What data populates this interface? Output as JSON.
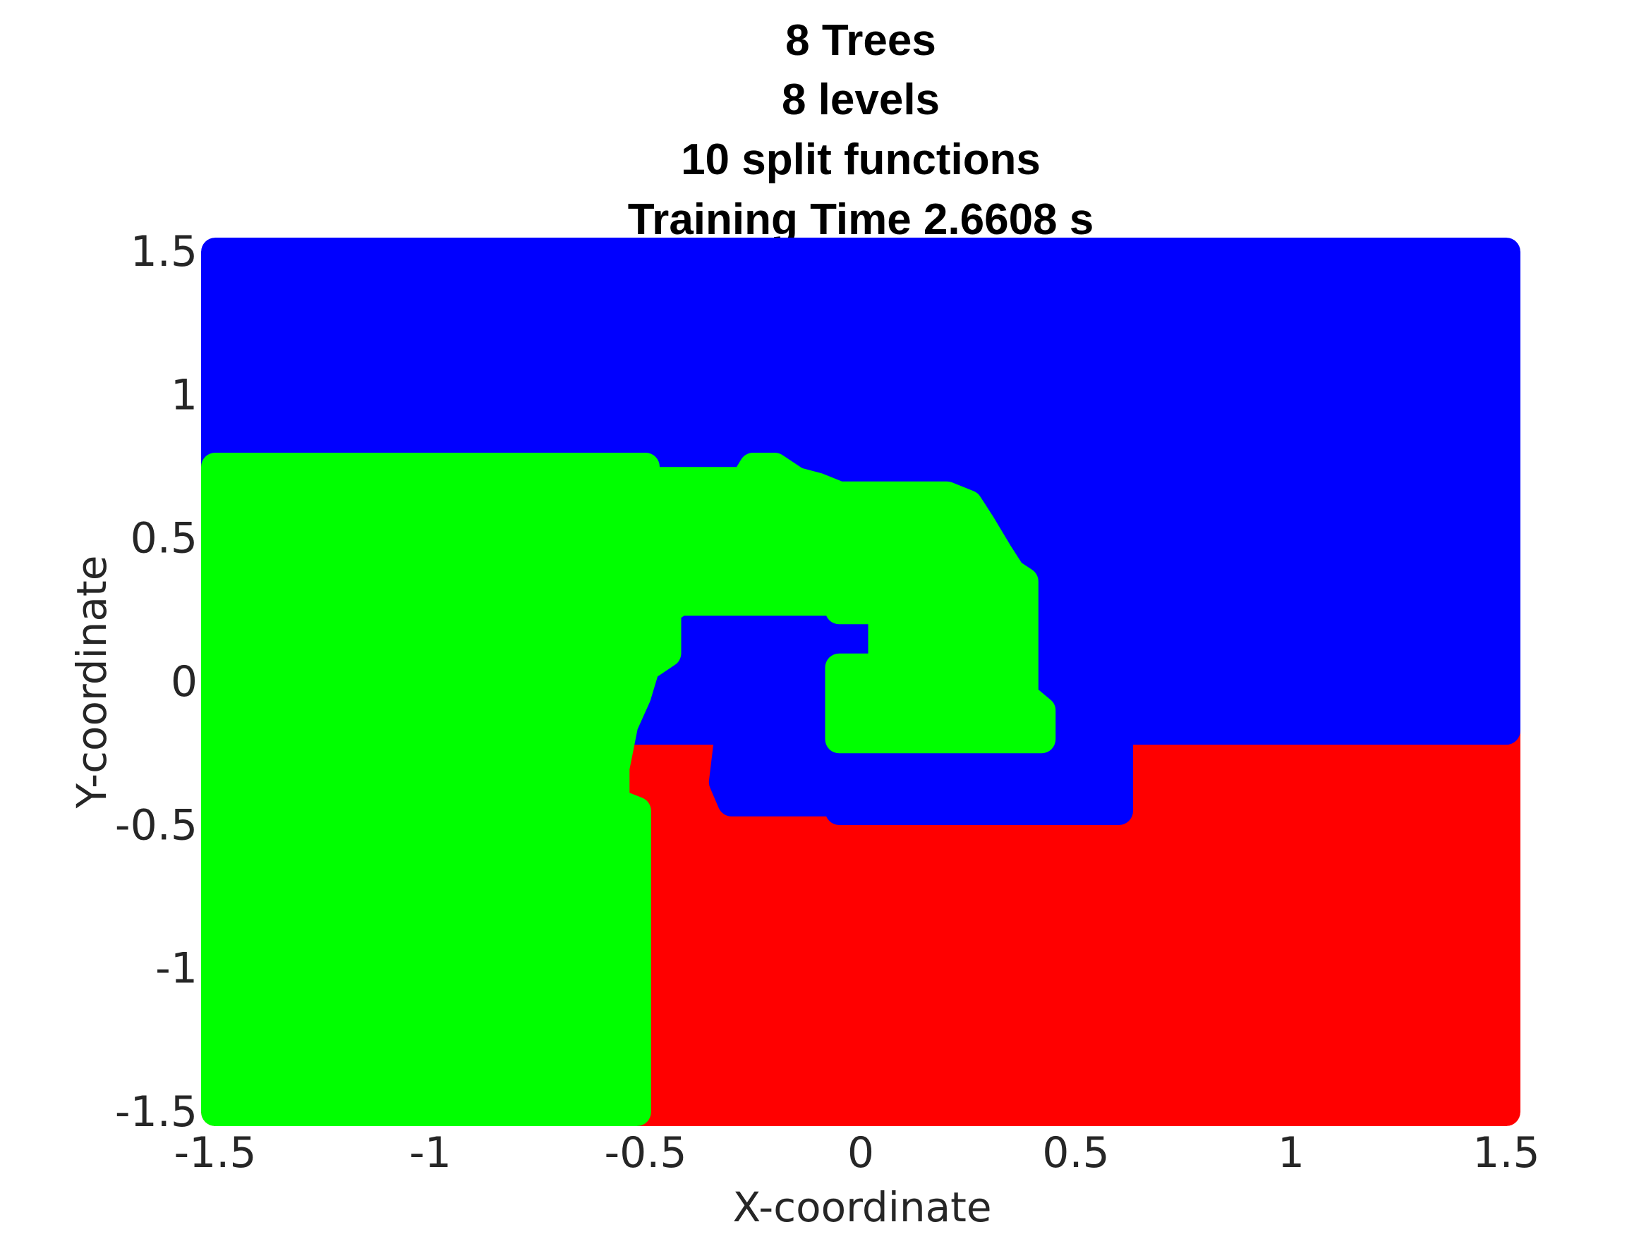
{
  "chart_data": {
    "type": "scatter",
    "title_lines": [
      "8 Trees",
      "8 levels",
      "10 split functions",
      "Training Time 2.6608 s"
    ],
    "xlabel": "X-coordinate",
    "ylabel": "Y-coordinate",
    "xlim": [
      -1.5,
      1.5
    ],
    "ylim": [
      -1.5,
      1.5
    ],
    "xticks": [
      -1.5,
      -1,
      -0.5,
      0,
      0.5,
      1,
      1.5
    ],
    "yticks": [
      -1.5,
      -1,
      -0.5,
      0,
      0.5,
      1,
      1.5
    ],
    "xtick_labels": [
      "-1.5",
      "-1",
      "-0.5",
      "0",
      "0.5",
      "1",
      "1.5"
    ],
    "ytick_labels": [
      "-1.5",
      "-1",
      "-0.5",
      "0",
      "0.5",
      "1",
      "1.5"
    ],
    "grid": false,
    "legend": "none",
    "classes": [
      {
        "color": "#0000ff",
        "regions": [
          [
            [
              -1.5,
              1.5
            ],
            [
              1.5,
              1.5
            ],
            [
              1.5,
              -0.17
            ],
            [
              -1.5,
              -0.17
            ]
          ],
          [
            [
              0.6,
              -0.17
            ],
            [
              0.6,
              -0.45
            ],
            [
              -0.05,
              -0.45
            ],
            [
              -0.05,
              -0.42
            ],
            [
              -0.3,
              -0.42
            ],
            [
              -0.32,
              -0.35
            ],
            [
              -0.3,
              -0.1
            ],
            [
              -0.25,
              -0.05
            ],
            [
              -0.2,
              0.05
            ],
            [
              -0.15,
              0.08
            ],
            [
              -0.05,
              0.1
            ],
            [
              0.0,
              0.1
            ],
            [
              0.0,
              -0.17
            ]
          ]
        ]
      },
      {
        "color": "#00ff00",
        "regions": [
          [
            [
              -1.5,
              0.75
            ],
            [
              -0.5,
              0.75
            ],
            [
              -0.5,
              0.7
            ],
            [
              -0.27,
              0.7
            ],
            [
              -0.25,
              0.75
            ],
            [
              -0.2,
              0.75
            ],
            [
              -0.15,
              0.7
            ],
            [
              -0.1,
              0.68
            ],
            [
              -0.05,
              0.65
            ],
            [
              0.2,
              0.65
            ],
            [
              0.25,
              0.62
            ],
            [
              0.28,
              0.55
            ],
            [
              0.32,
              0.45
            ],
            [
              0.35,
              0.38
            ],
            [
              0.38,
              0.35
            ],
            [
              0.38,
              -0.05
            ],
            [
              0.42,
              -0.1
            ],
            [
              0.42,
              -0.2
            ],
            [
              -0.05,
              -0.2
            ],
            [
              -0.05,
              0.05
            ],
            [
              0.05,
              0.05
            ],
            [
              0.05,
              0.25
            ],
            [
              -0.05,
              0.25
            ],
            [
              -0.05,
              0.28
            ],
            [
              -0.42,
              0.28
            ],
            [
              -0.45,
              0.25
            ],
            [
              -0.45,
              0.1
            ],
            [
              -0.5,
              0.05
            ],
            [
              -0.52,
              -0.05
            ],
            [
              -0.55,
              -0.15
            ],
            [
              -0.57,
              -0.3
            ],
            [
              -0.57,
              -0.42
            ],
            [
              -0.52,
              -0.45
            ],
            [
              -0.52,
              -1.5
            ],
            [
              -1.5,
              -1.5
            ]
          ]
        ]
      },
      {
        "color": "#ff0000",
        "regions": [
          [
            [
              -1.5,
              -0.17
            ],
            [
              1.5,
              -0.17
            ],
            [
              1.5,
              -1.5
            ],
            [
              -1.5,
              -1.5
            ]
          ]
        ]
      }
    ]
  }
}
